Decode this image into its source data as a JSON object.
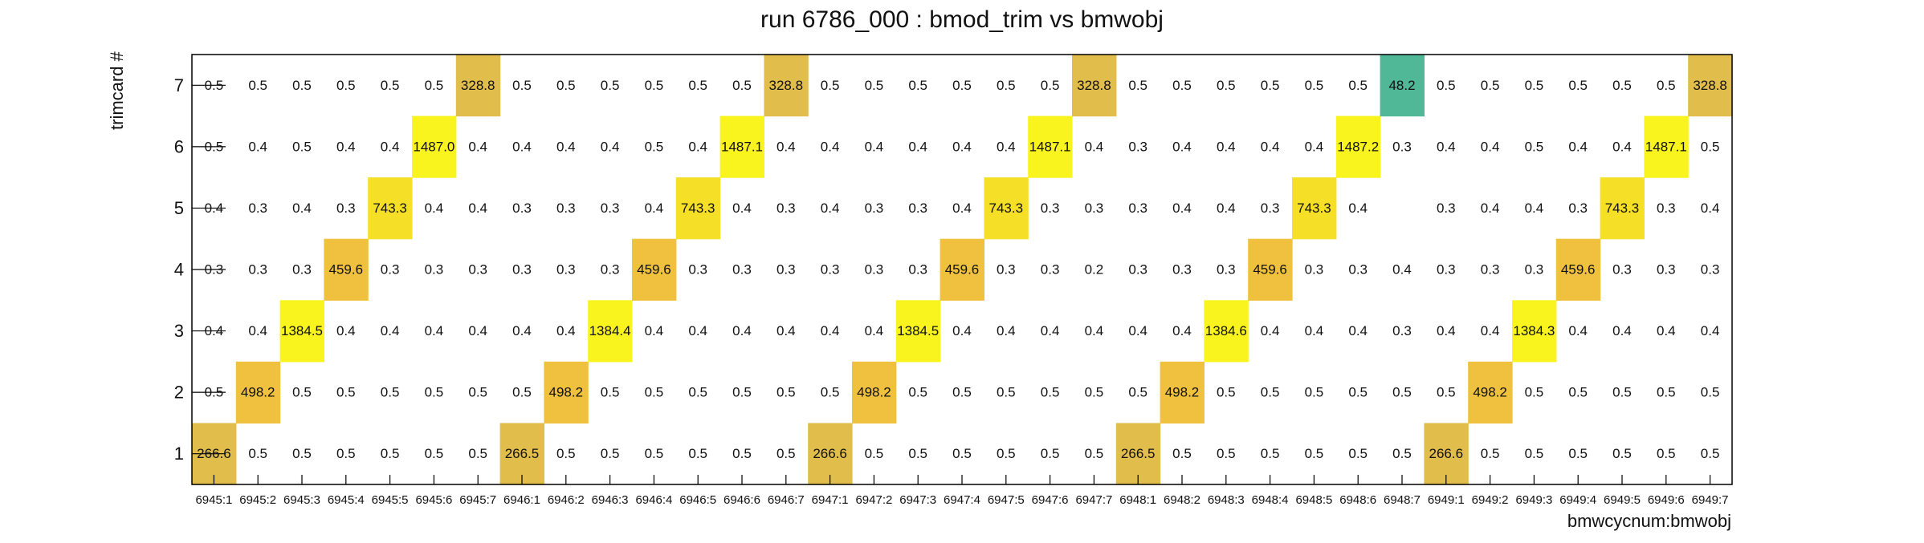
{
  "chart_data": {
    "type": "heatmap",
    "title": "run 6786_000 : bmod_trim vs bmwobj",
    "xlabel": "bmwcycnum:bmwobj",
    "ylabel": "trimcard #",
    "x_categories": [
      "6945:1",
      "6945:2",
      "6945:3",
      "6945:4",
      "6945:5",
      "6945:6",
      "6945:7",
      "6946:1",
      "6946:2",
      "6946:3",
      "6946:4",
      "6946:5",
      "6946:6",
      "6946:7",
      "6947:1",
      "6947:2",
      "6947:3",
      "6947:4",
      "6947:5",
      "6947:6",
      "6947:7",
      "6948:1",
      "6948:2",
      "6948:3",
      "6948:4",
      "6948:5",
      "6948:6",
      "6948:7",
      "6949:1",
      "6949:2",
      "6949:3",
      "6949:4",
      "6949:5",
      "6949:6",
      "6949:7"
    ],
    "y_categories": [
      "1",
      "2",
      "3",
      "4",
      "5",
      "6",
      "7"
    ],
    "values": [
      [
        "266.6",
        "0.5",
        "0.5",
        "0.5",
        "0.5",
        "0.5",
        "0.5",
        "266.5",
        "0.5",
        "0.5",
        "0.5",
        "0.5",
        "0.5",
        "0.5",
        "266.6",
        "0.5",
        "0.5",
        "0.5",
        "0.5",
        "0.5",
        "0.5",
        "266.5",
        "0.5",
        "0.5",
        "0.5",
        "0.5",
        "0.5",
        "0.5",
        "266.6",
        "0.5",
        "0.5",
        "0.5",
        "0.5",
        "0.5",
        "0.5"
      ],
      [
        "0.5",
        "498.2",
        "0.5",
        "0.5",
        "0.5",
        "0.5",
        "0.5",
        "0.5",
        "498.2",
        "0.5",
        "0.5",
        "0.5",
        "0.5",
        "0.5",
        "0.5",
        "498.2",
        "0.5",
        "0.5",
        "0.5",
        "0.5",
        "0.5",
        "0.5",
        "498.2",
        "0.5",
        "0.5",
        "0.5",
        "0.5",
        "0.5",
        "0.5",
        "498.2",
        "0.5",
        "0.5",
        "0.5",
        "0.5",
        "0.5"
      ],
      [
        "0.4",
        "0.4",
        "1384.5",
        "0.4",
        "0.4",
        "0.4",
        "0.4",
        "0.4",
        "0.4",
        "1384.4",
        "0.4",
        "0.4",
        "0.4",
        "0.4",
        "0.4",
        "0.4",
        "1384.5",
        "0.4",
        "0.4",
        "0.4",
        "0.4",
        "0.4",
        "0.4",
        "1384.6",
        "0.4",
        "0.4",
        "0.4",
        "0.3",
        "0.4",
        "0.4",
        "1384.3",
        "0.4",
        "0.4",
        "0.4",
        "0.4"
      ],
      [
        "0.3",
        "0.3",
        "0.3",
        "459.6",
        "0.3",
        "0.3",
        "0.3",
        "0.3",
        "0.3",
        "0.3",
        "459.6",
        "0.3",
        "0.3",
        "0.3",
        "0.3",
        "0.3",
        "0.3",
        "459.6",
        "0.3",
        "0.3",
        "0.2",
        "0.3",
        "0.3",
        "0.3",
        "459.6",
        "0.3",
        "0.3",
        "0.4",
        "0.3",
        "0.3",
        "0.3",
        "459.6",
        "0.3",
        "0.3",
        "0.3"
      ],
      [
        "0.4",
        "0.3",
        "0.4",
        "0.3",
        "743.3",
        "0.4",
        "0.4",
        "0.3",
        "0.3",
        "0.3",
        "0.4",
        "743.3",
        "0.4",
        "0.3",
        "0.4",
        "0.3",
        "0.3",
        "0.4",
        "743.3",
        "0.3",
        "0.3",
        "0.3",
        "0.4",
        "0.4",
        "0.3",
        "743.3",
        "0.4",
        "",
        "0.3",
        "0.4",
        "0.4",
        "0.3",
        "743.3",
        "0.3",
        "0.4"
      ],
      [
        "0.5",
        "0.4",
        "0.5",
        "0.4",
        "0.4",
        "1487.0",
        "0.4",
        "0.4",
        "0.4",
        "0.4",
        "0.5",
        "0.4",
        "1487.1",
        "0.4",
        "0.4",
        "0.4",
        "0.4",
        "0.4",
        "0.4",
        "1487.1",
        "0.4",
        "0.3",
        "0.4",
        "0.4",
        "0.4",
        "0.4",
        "1487.2",
        "0.3",
        "0.4",
        "0.4",
        "0.5",
        "0.4",
        "0.4",
        "1487.1",
        "0.5"
      ],
      [
        "0.5",
        "0.5",
        "0.5",
        "0.5",
        "0.5",
        "0.5",
        "328.8",
        "0.5",
        "0.5",
        "0.5",
        "0.5",
        "0.5",
        "0.5",
        "328.8",
        "0.5",
        "0.5",
        "0.5",
        "0.5",
        "0.5",
        "0.5",
        "328.8",
        "0.5",
        "0.5",
        "0.5",
        "0.5",
        "0.5",
        "0.5",
        "48.2",
        "0.5",
        "0.5",
        "0.5",
        "0.5",
        "0.5",
        "0.5",
        "328.8"
      ]
    ],
    "zlim": [
      0,
      1500
    ],
    "colors": {
      "high": "#f9f31e",
      "upper_mid": "#f6e027",
      "mid": "#f0c13e",
      "lower_mid": "#e1bd4c",
      "low": "#50b896"
    },
    "grid": false,
    "legend": "none"
  }
}
